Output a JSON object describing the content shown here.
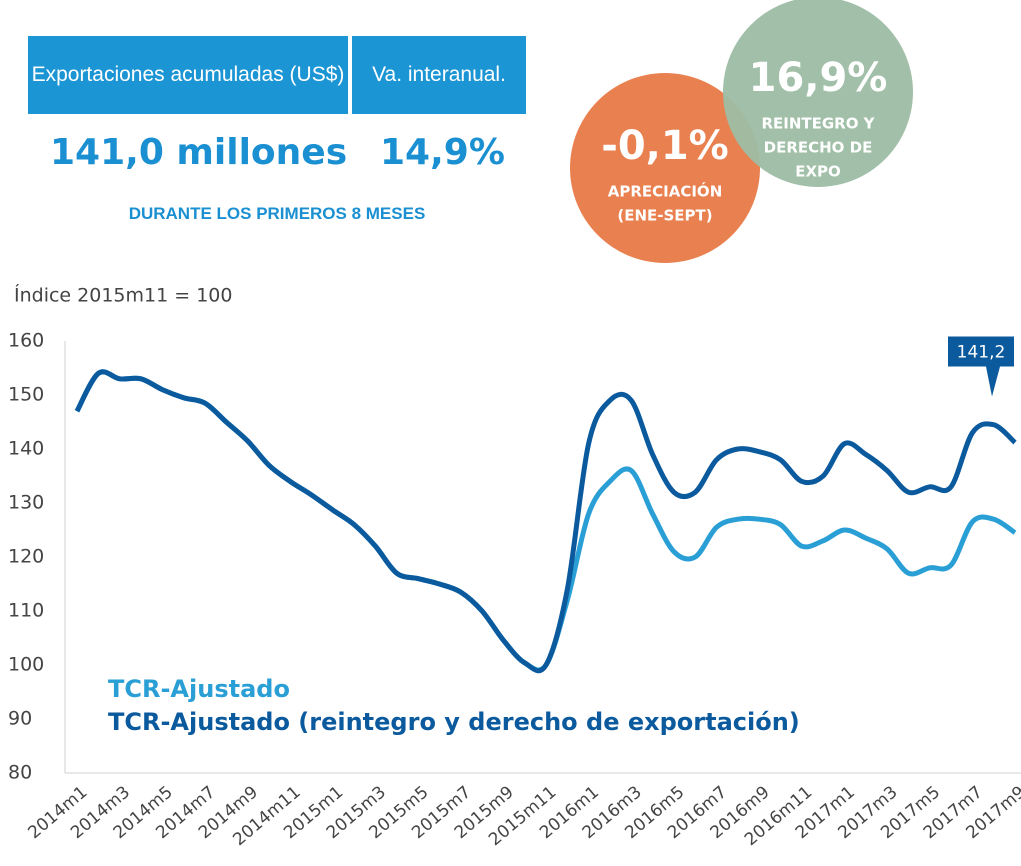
{
  "header": {
    "table": {
      "headers": [
        "Exportaciones acumuladas (US$)",
        "Va. interanual."
      ],
      "values": [
        "141,0 millones",
        "14,9%"
      ]
    },
    "note": "DURANTE LOS PRIMEROS 8 MESES"
  },
  "bubbles": [
    {
      "value": "-0,1%",
      "lines": [
        "APRECIACIÓN",
        "(ENE-SEPT)"
      ],
      "color": "#e9804f"
    },
    {
      "value": "16,9%",
      "lines": [
        "REINTEGRO Y",
        "DERECHO DE",
        "EXPO"
      ],
      "color": "#9dbda4"
    }
  ],
  "chart_data": {
    "type": "line",
    "y_axis_label": "Índice 2015m11 = 100",
    "categories": [
      "2014m1",
      null,
      "2014m3",
      null,
      "2014m5",
      null,
      "2014m7",
      null,
      "2014m9",
      null,
      "2014m11",
      null,
      "2015m1",
      null,
      "2015m3",
      null,
      "2015m5",
      null,
      "2015m7",
      null,
      "2015m9",
      null,
      "2015m11",
      null,
      "2016m1",
      null,
      "2016m3",
      null,
      "2016m5",
      null,
      "2016m7",
      null,
      "2016m9",
      null,
      "2016m11",
      null,
      "2017m1",
      null,
      "2017m3",
      null,
      "2017m5",
      null,
      "2017m7",
      null,
      "2017m9"
    ],
    "series": [
      {
        "name": "TCR-Ajustado",
        "color": "#2a9fd6",
        "values": [
          147,
          154,
          153,
          153,
          151,
          149.5,
          148.5,
          145,
          141.5,
          137,
          134,
          131.5,
          128.7,
          126,
          122,
          117,
          116,
          115,
          113.5,
          110,
          104.6,
          100.4,
          100,
          112,
          128,
          134,
          136,
          128,
          121,
          120,
          125.5,
          127,
          127,
          126,
          122,
          123,
          125,
          123.5,
          121.5,
          117,
          118,
          118.5,
          126.5,
          127,
          124.5
        ]
      },
      {
        "name": "TCR-Ajustado (reintegro y derecho de exportación)",
        "color": "#0b5a9e",
        "values": [
          147,
          154,
          153,
          153,
          151,
          149.5,
          148.5,
          145,
          141.5,
          137,
          134,
          131.5,
          128.7,
          126,
          122,
          117,
          116,
          115,
          113.5,
          110,
          104.6,
          100.4,
          100,
          114,
          141,
          149,
          149,
          139,
          132,
          132,
          138,
          140,
          139.5,
          138,
          134,
          135,
          141,
          139,
          136,
          132,
          133,
          133,
          143,
          144.5,
          141.2
        ],
        "value_labels": [
          null,
          null,
          null,
          null,
          null,
          null,
          null,
          null,
          null,
          null,
          null,
          null,
          null,
          null,
          null,
          null,
          null,
          null,
          null,
          null,
          null,
          null,
          null,
          null,
          null,
          null,
          null,
          null,
          null,
          null,
          null,
          null,
          null,
          null,
          null,
          null,
          null,
          null,
          null,
          null,
          null,
          null,
          null,
          null,
          "141,2"
        ]
      }
    ],
    "ylim": [
      80,
      160
    ],
    "yticks": [
      80,
      90,
      100,
      110,
      120,
      130,
      140,
      150,
      160
    ],
    "grid": false
  }
}
